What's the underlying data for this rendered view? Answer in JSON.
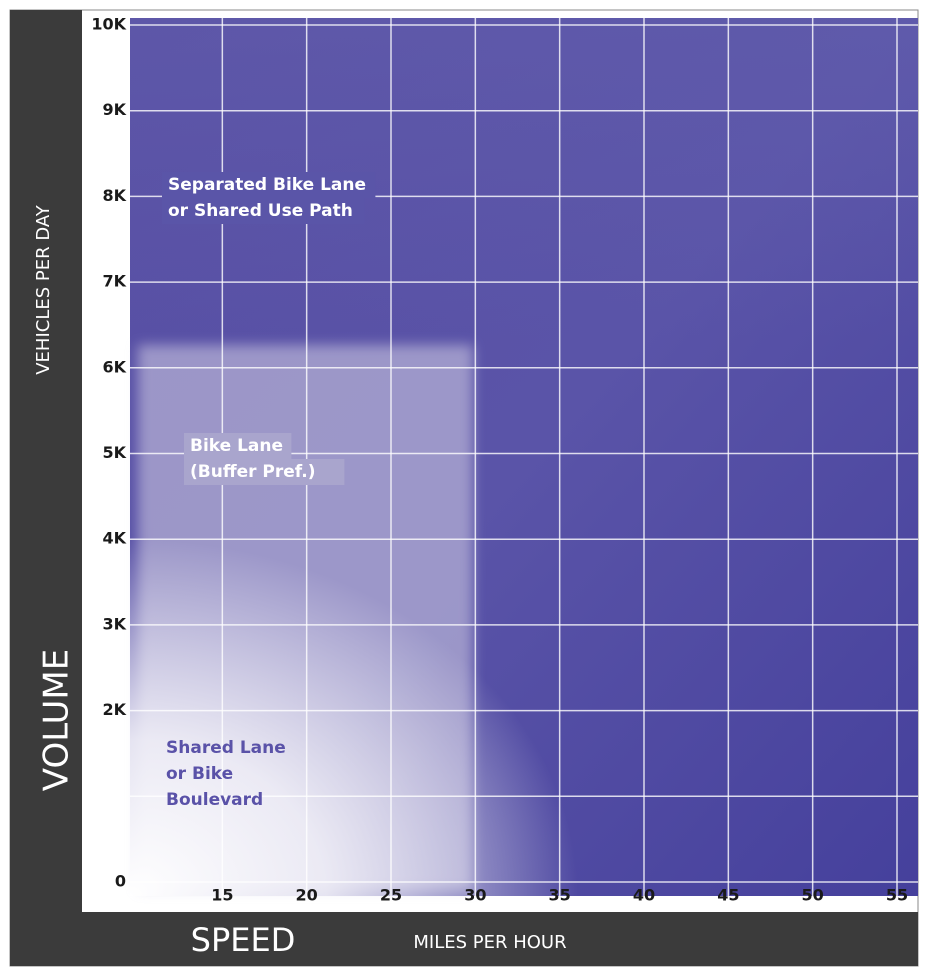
{
  "chart_data": {
    "type": "zones",
    "x_label": "SPEED",
    "x_sublabel": "MILES PER HOUR",
    "y_label": "VOLUME",
    "y_sublabel": "VEHICLES PER DAY",
    "xlim": [
      10,
      55
    ],
    "xticks": [
      15,
      20,
      25,
      30,
      35,
      40,
      45,
      50,
      55
    ],
    "ylim": [
      0,
      10000
    ],
    "yticks": [
      0,
      {
        "value": 2000,
        "label": "2K"
      },
      {
        "value": 3000,
        "label": "3K"
      },
      {
        "value": 4000,
        "label": "4K"
      },
      {
        "value": 5000,
        "label": "5K"
      },
      {
        "value": 6000,
        "label": "6K"
      },
      {
        "value": 7000,
        "label": "7K"
      },
      {
        "value": 8000,
        "label": "8K"
      },
      {
        "value": 9000,
        "label": "9K"
      },
      {
        "value": 10000,
        "label": "10K"
      }
    ],
    "y_minor_gridlines": [
      1000
    ],
    "grid": true,
    "zones": [
      {
        "lines": [
          "Separated Bike Lane",
          "or Shared Use Path"
        ],
        "color": "#ffffff"
      },
      {
        "lines": [
          "Bike Lane",
          "(Buffer Pref.)"
        ],
        "color": "#ffffff"
      },
      {
        "lines": [
          "Shared Lane",
          "or Bike",
          "Boulevard"
        ],
        "color": "#5a52a8"
      }
    ]
  }
}
